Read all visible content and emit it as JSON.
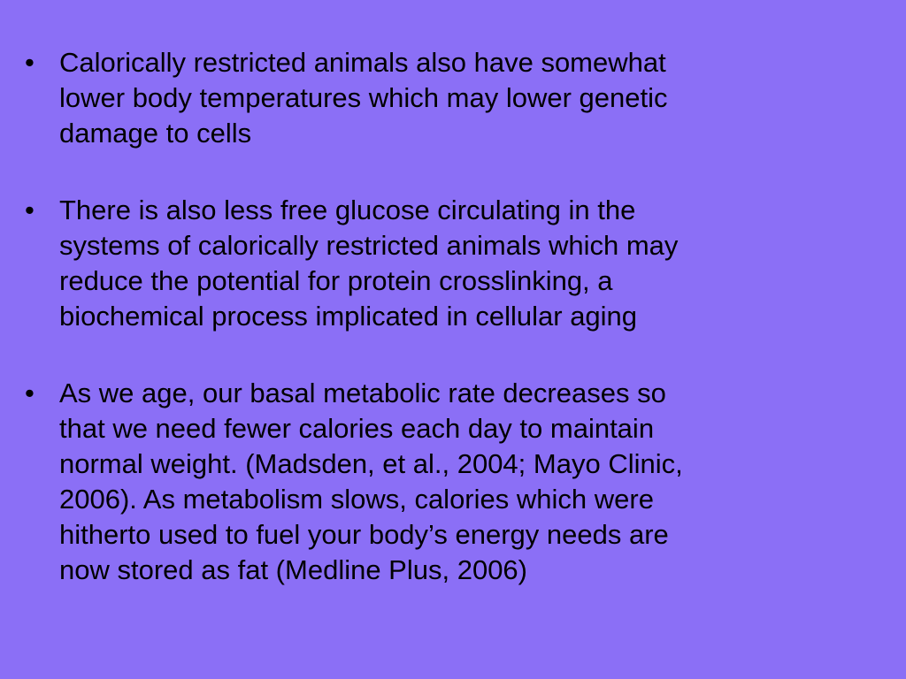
{
  "slide": {
    "bullet_symbol": "•",
    "bullets": [
      {
        "lines": [
          "Calorically restricted animals also have somewhat",
          "lower body temperatures which may lower genetic",
          "damage to cells"
        ]
      },
      {
        "lines": [
          "There is also less free glucose circulating in the",
          "systems of calorically restricted animals which may",
          "reduce the potential for protein crosslinking, a",
          "biochemical process implicated in cellular aging"
        ]
      },
      {
        "lines": [
          "As we age, our basal metabolic rate decreases so",
          "that we need fewer calories each day to maintain",
          "normal weight. (Madsden, et al., 2004; Mayo Clinic,",
          "2006).  As metabolism slows, calories which were",
          "hitherto used to fuel your body’s energy needs are",
          "now stored as fat (Medline Plus, 2006)"
        ]
      }
    ]
  },
  "colors": {
    "background": "#8b6ff6",
    "text": "#000000"
  }
}
